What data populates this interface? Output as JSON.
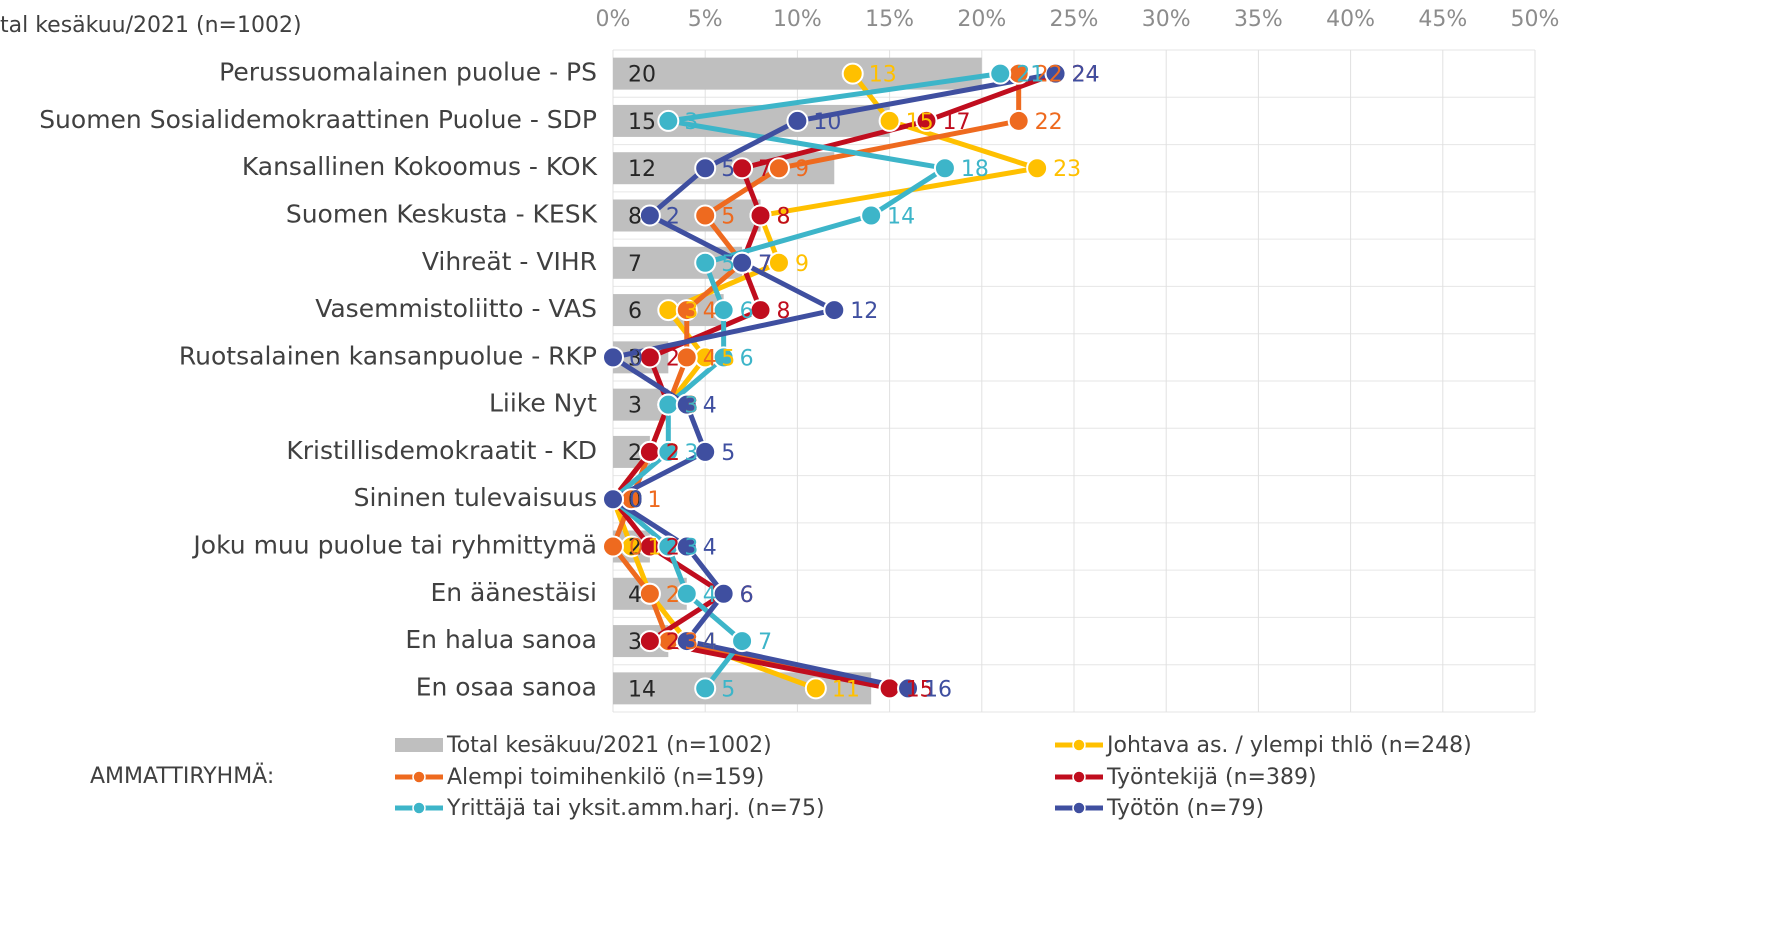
{
  "chart_data": {
    "type": "combo",
    "orientation": "horizontal",
    "title": "tal kesäkuu/2021 (n=1002)",
    "legend_title": "AMMATTIRYHMÄ:",
    "categories": [
      "Perussuomalainen puolue - PS",
      "Suomen Sosialidemokraattinen Puolue - SDP",
      "Kansallinen Kokoomus - KOK",
      "Suomen Keskusta - KESK",
      "Vihreät - VIHR",
      "Vasemmistoliitto - VAS",
      "Ruotsalainen kansanpuolue - RKP",
      "Liike Nyt",
      "Kristillisdemokraatit - KD",
      "Sininen tulevaisuus",
      "Joku muu puolue tai ryhmittymä",
      "En äänestäisi",
      "En halua sanoa",
      "En osaa sanoa"
    ],
    "xlim": [
      0,
      50
    ],
    "xticks": [
      {
        "value": 0,
        "label": "0%"
      },
      {
        "value": 5,
        "label": "5%"
      },
      {
        "value": 10,
        "label": "10%"
      },
      {
        "value": 15,
        "label": "15%"
      },
      {
        "value": 20,
        "label": "20%"
      },
      {
        "value": 25,
        "label": "25%"
      },
      {
        "value": 30,
        "label": "30%"
      },
      {
        "value": 35,
        "label": "35%"
      },
      {
        "value": 40,
        "label": "40%"
      },
      {
        "value": 45,
        "label": "45%"
      },
      {
        "value": 50,
        "label": "50%"
      }
    ],
    "grid": true,
    "series": [
      {
        "name": "Total kesäkuu/2021 (n=1002)",
        "type": "bar",
        "color": "#bfbfbf",
        "values": [
          20,
          15,
          12,
          8,
          7,
          6,
          3,
          3,
          2,
          0,
          2,
          4,
          3,
          14
        ]
      },
      {
        "name": "Johtava as. / ylempi thlö (n=248)",
        "type": "line",
        "color": "#ffc000",
        "values": [
          13,
          15,
          23,
          8,
          9,
          3,
          5,
          3,
          2,
          0,
          1,
          2,
          4,
          11
        ]
      },
      {
        "name": "Alempi toimihenkilö (n=159)",
        "type": "line",
        "color": "#ee6a1f",
        "values": [
          22,
          22,
          9,
          5,
          7,
          4,
          4,
          3,
          2,
          1,
          0,
          2,
          3,
          15
        ]
      },
      {
        "name": "Työntekijä (n=389)",
        "type": "line",
        "color": "#c00d1e",
        "values": [
          24,
          17,
          7,
          8,
          7,
          8,
          2,
          3,
          2,
          0,
          2,
          6,
          2,
          15
        ]
      },
      {
        "name": "Yrittäjä tai yksit.amm.harj. (n=75)",
        "type": "line",
        "color": "#3db5c9",
        "values": [
          21,
          3,
          18,
          14,
          5,
          6,
          6,
          3,
          3,
          0,
          3,
          4,
          7,
          5
        ]
      },
      {
        "name": "Työtön (n=79)",
        "type": "line",
        "color": "#3f4fa0",
        "values": [
          24,
          10,
          5,
          2,
          7,
          12,
          0,
          4,
          5,
          0,
          4,
          6,
          4,
          16
        ]
      }
    ]
  }
}
